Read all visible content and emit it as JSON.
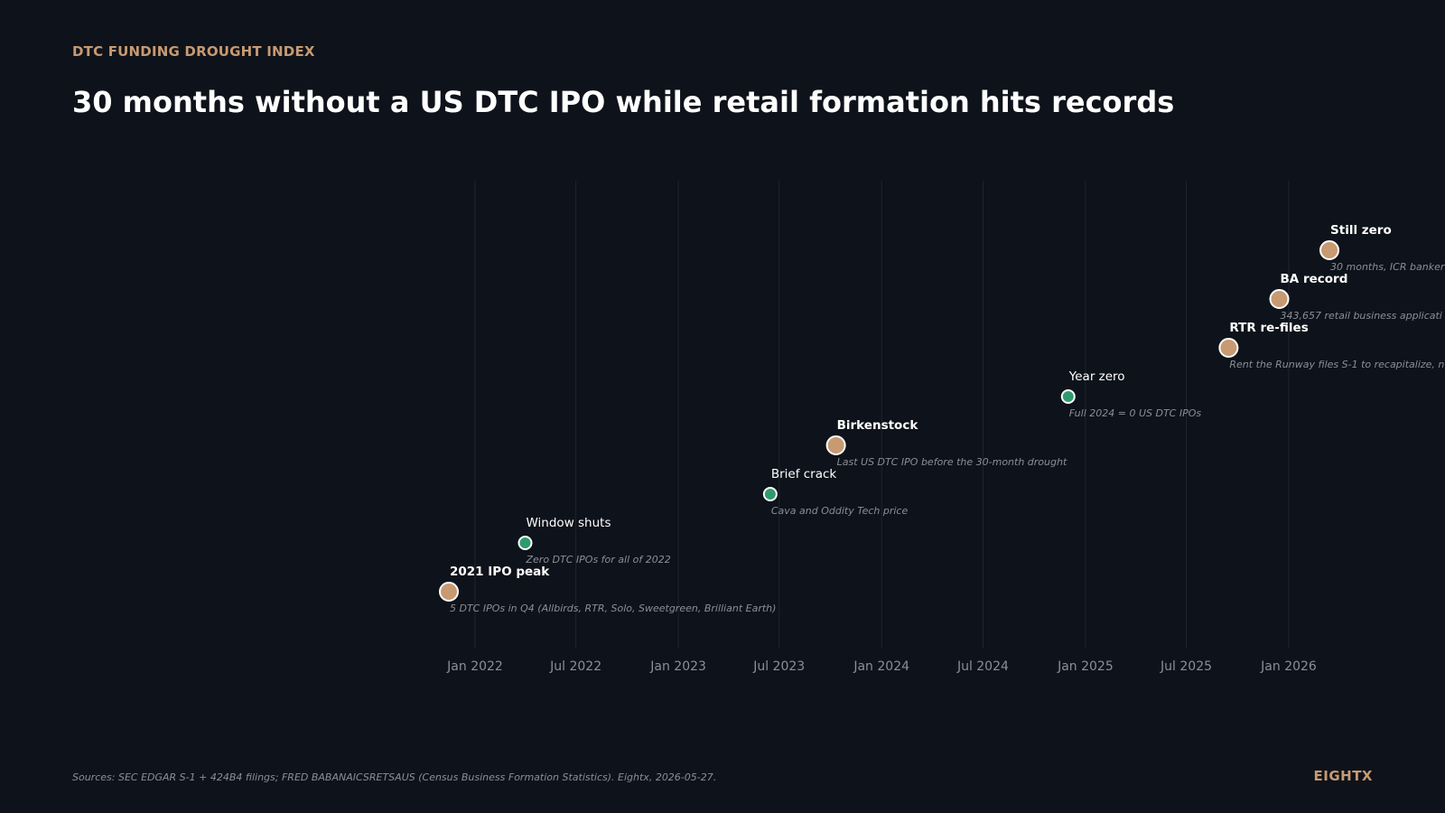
{
  "header": {
    "eyebrow": "DTC FUNDING DROUGHT INDEX",
    "title": "30 months without a US DTC IPO while retail formation hits records"
  },
  "footer": {
    "sources": "Sources: SEC EDGAR S-1 + 424B4 filings; FRED BABANAICSRETSAUS (Census Business Formation Statistics). Eightx, 2026-05-27.",
    "brand": "EIGHTX"
  },
  "colors": {
    "background": "#0e121a",
    "major_marker": "#c79a72",
    "minor_marker": "#2f9a6e",
    "accent": "#c79a72",
    "grid": "#1f242d",
    "muted_text": "#8a8f98"
  },
  "chart_data": {
    "type": "scatter",
    "title": "30 months without a US DTC IPO while retail formation hits records",
    "xlabel": "",
    "ylabel": "",
    "x_ticks": [
      "Jan 2022",
      "Jul 2022",
      "Jan 2023",
      "Jul 2023",
      "Jan 2024",
      "Jul 2024",
      "Jan 2025",
      "Jul 2025",
      "Jan 2026"
    ],
    "x_range": [
      "2021-10-01",
      "2026-07-01"
    ],
    "grid": "vertical",
    "events": [
      {
        "date": "2021-11-15",
        "label": "2021 IPO peak",
        "note": "5 DTC IPOs in Q4 (Allbirds, RTR, Solo, Sweetgreen, Brilliant Earth)",
        "kind": "major"
      },
      {
        "date": "2022-04-01",
        "label": "Window shuts",
        "note": "Zero DTC IPOs for all of 2022",
        "kind": "minor"
      },
      {
        "date": "2023-06-15",
        "label": "Brief crack",
        "note": "Cava and Oddity Tech price",
        "kind": "minor"
      },
      {
        "date": "2023-10-11",
        "label": "Birkenstock",
        "note": "Last US DTC IPO before the 30-month drought",
        "kind": "major"
      },
      {
        "date": "2024-12-01",
        "label": "Year zero",
        "note": "Full 2024 = 0 US DTC IPOs",
        "kind": "minor"
      },
      {
        "date": "2025-09-15",
        "label": "RTR re-files",
        "note": "Rent the Runway files S-1 to recapitalize, n",
        "kind": "major"
      },
      {
        "date": "2025-12-15",
        "label": "BA record",
        "note": "343,657 retail business applicati",
        "kind": "major"
      },
      {
        "date": "2026-03-15",
        "label": "Still zero",
        "note": "30 months, ICR banker",
        "kind": "major"
      }
    ]
  }
}
